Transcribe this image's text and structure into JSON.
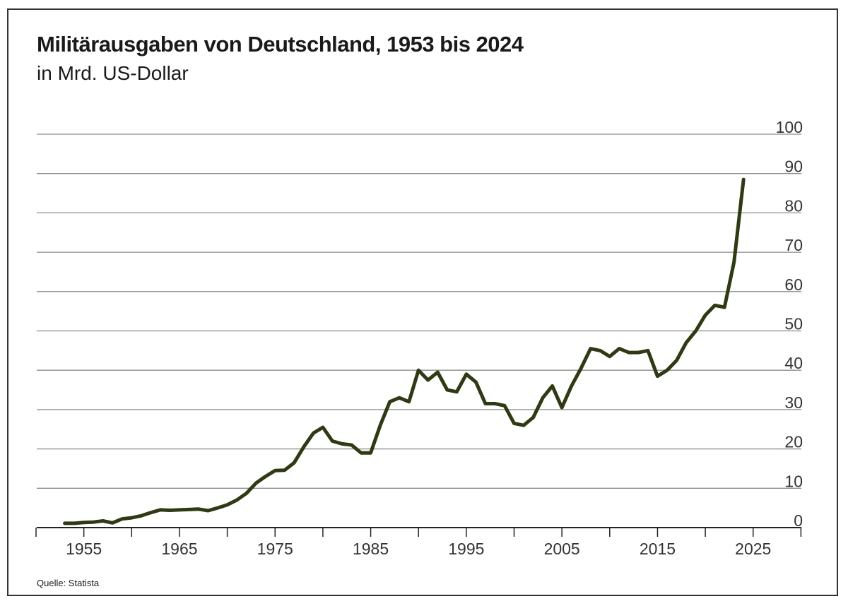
{
  "chart_data": {
    "type": "line",
    "title": "Militärausgaben von Deutschland, 1953 bis 2024",
    "subtitle": "in Mrd. US-Dollar",
    "source": "Quelle: Statista",
    "xlim": [
      1950,
      2030
    ],
    "ylim": [
      0,
      100
    ],
    "x_ticks": [
      1955,
      1965,
      1975,
      1985,
      1995,
      2005,
      2015,
      2025
    ],
    "y_ticks": [
      0,
      10,
      20,
      30,
      40,
      50,
      60,
      70,
      80,
      90,
      100
    ],
    "grid": true,
    "line_color": "#2e3a12",
    "series": [
      {
        "x": [
          1953,
          1954,
          1955,
          1956,
          1957,
          1958,
          1959,
          1960,
          1961,
          1962,
          1963,
          1964,
          1965,
          1966,
          1967,
          1968,
          1969,
          1970,
          1971,
          1972,
          1973,
          1974,
          1975,
          1976,
          1977,
          1978,
          1979,
          1980,
          1981,
          1982,
          1983,
          1984,
          1985,
          1986,
          1987,
          1988,
          1989,
          1990,
          1991,
          1992,
          1993,
          1994,
          1995,
          1996,
          1997,
          1998,
          1999,
          2000,
          2001,
          2002,
          2003,
          2004,
          2005,
          2006,
          2007,
          2008,
          2009,
          2010,
          2011,
          2012,
          2013,
          2014,
          2015,
          2016,
          2017,
          2018,
          2019,
          2020,
          2021,
          2022,
          2023,
          2024
        ],
        "values": [
          1.1,
          1.1,
          1.3,
          1.4,
          1.7,
          1.2,
          2.2,
          2.5,
          3.0,
          3.8,
          4.5,
          4.4,
          4.5,
          4.6,
          4.7,
          4.3,
          5.0,
          5.8,
          7.0,
          8.7,
          11.3,
          13.0,
          14.5,
          14.6,
          16.5,
          20.5,
          24.0,
          25.5,
          22.0,
          21.3,
          21.0,
          19.0,
          19.0,
          26.0,
          32.0,
          33.0,
          32.0,
          40.0,
          37.5,
          39.5,
          35.0,
          34.5,
          39.0,
          37.0,
          31.5,
          31.5,
          31.0,
          26.5,
          26.0,
          28.0,
          33.0,
          36.0,
          30.5,
          36.0,
          40.5,
          45.5,
          45.0,
          43.5,
          45.5,
          44.5,
          44.5,
          45.0,
          38.5,
          40.0,
          42.5,
          47.0,
          50.0,
          54.0,
          56.5,
          56.0,
          67.5,
          88.5
        ]
      }
    ]
  }
}
